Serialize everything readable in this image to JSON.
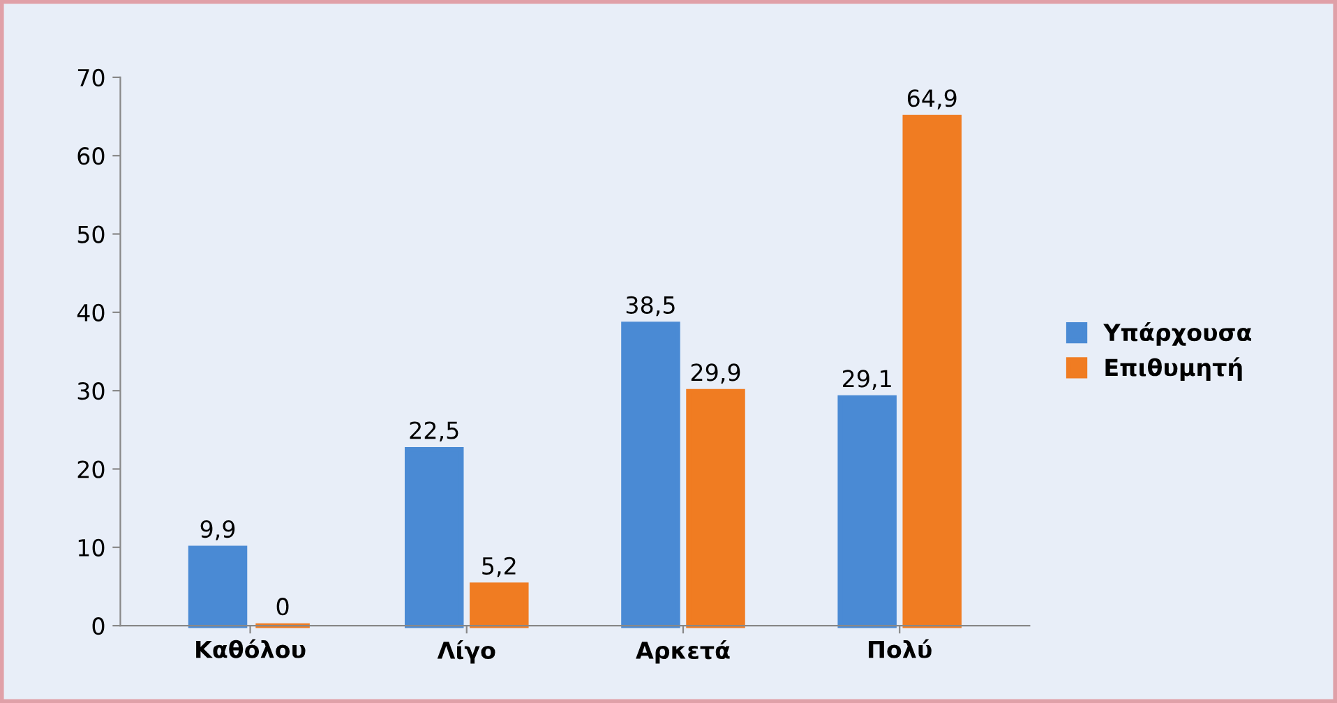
{
  "chart_data": {
    "type": "bar",
    "categories": [
      "Καθόλου",
      "Λίγο",
      "Αρκετά",
      "Πολύ"
    ],
    "series": [
      {
        "name": "Υπάρχουσα",
        "color": "#4a8ad4",
        "values": [
          9.9,
          22.5,
          38.5,
          29.1
        ],
        "value_labels": [
          "9,9",
          "22,5",
          "38,5",
          "29,1"
        ]
      },
      {
        "name": "Επιθυμητή",
        "color": "#f07c22",
        "values": [
          0,
          5.2,
          29.9,
          64.9
        ],
        "value_labels": [
          "0",
          "5,2",
          "29,9",
          "64,9"
        ]
      }
    ],
    "ylim": [
      0,
      70
    ],
    "yticks": [
      0,
      10,
      20,
      30,
      40,
      50,
      60,
      70
    ],
    "grid": false,
    "legend": "right"
  }
}
